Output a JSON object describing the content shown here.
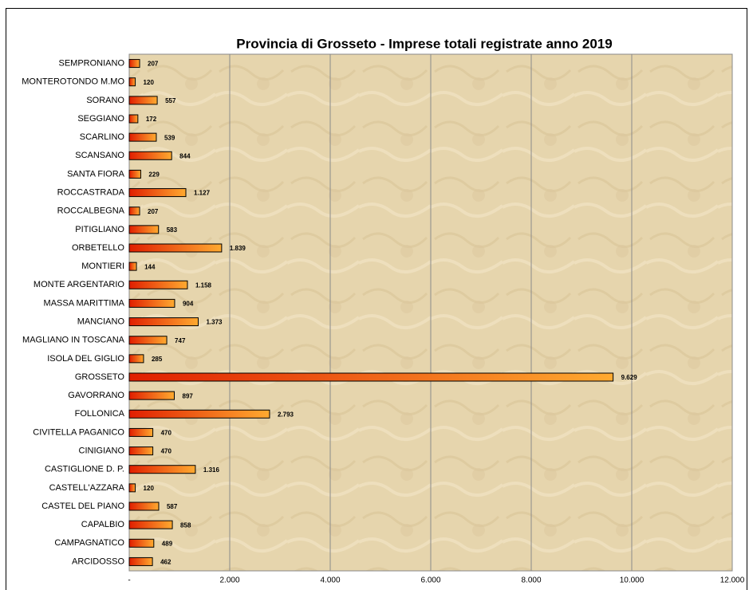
{
  "chart_data": {
    "type": "bar",
    "orientation": "horizontal",
    "title": "Provincia di Grosseto - Imprese totali registrate anno 2019",
    "categories": [
      "SEMPRONIANO",
      "MONTEROTONDO M.MO",
      "SORANO",
      "SEGGIANO",
      "SCARLINO",
      "SCANSANO",
      "SANTA FIORA",
      "ROCCASTRADA",
      "ROCCALBEGNA",
      "PITIGLIANO",
      "ORBETELLO",
      "MONTIERI",
      "MONTE ARGENTARIO",
      "MASSA MARITTIMA",
      "MANCIANO",
      "MAGLIANO IN TOSCANA",
      "ISOLA DEL GIGLIO",
      "GROSSETO",
      "GAVORRANO",
      "FOLLONICA",
      "CIVITELLA PAGANICO",
      "CINIGIANO",
      "CASTIGLIONE D. P.",
      "CASTELL'AZZARA",
      "CASTEL DEL PIANO",
      "CAPALBIO",
      "CAMPAGNATICO",
      "ARCIDOSSO"
    ],
    "values": [
      207,
      120,
      557,
      172,
      539,
      844,
      229,
      1127,
      207,
      583,
      1839,
      144,
      1158,
      904,
      1373,
      747,
      285,
      9629,
      897,
      2793,
      470,
      470,
      1316,
      120,
      587,
      858,
      489,
      462
    ],
    "value_labels": [
      "207",
      "120",
      "557",
      "172",
      "539",
      "844",
      "229",
      "1.127",
      "207",
      "583",
      "1.839",
      "144",
      "1.158",
      "904",
      "1.373",
      "747",
      "285",
      "9.629",
      "897",
      "2.793",
      "470",
      "470",
      "1.316",
      "120",
      "587",
      "858",
      "489",
      "462"
    ],
    "xlim": [
      0,
      12000
    ],
    "xticks": [
      {
        "value": 0,
        "label": "-"
      },
      {
        "value": 2000,
        "label": "2.000"
      },
      {
        "value": 4000,
        "label": "4.000"
      },
      {
        "value": 6000,
        "label": "6.000"
      },
      {
        "value": 8000,
        "label": "8.000"
      },
      {
        "value": 10000,
        "label": "10.000"
      },
      {
        "value": 12000,
        "label": "12.000"
      }
    ],
    "grid": true,
    "color": "#f06010"
  }
}
